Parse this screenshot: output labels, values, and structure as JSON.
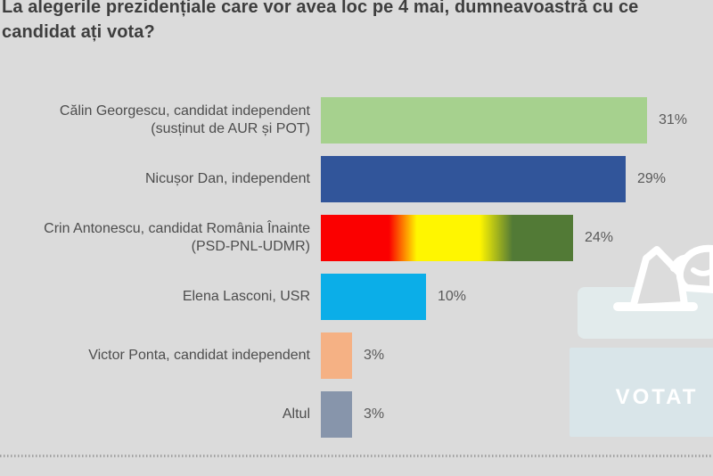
{
  "title": "La alegerile prezidențiale care vor avea loc pe 4 mai, dumneavoastră cu ce candidat ați vota?",
  "background_color": "#dbdbdb",
  "chart_data": {
    "type": "bar",
    "orientation": "horizontal",
    "value_unit": "%",
    "value_range": [
      0,
      31
    ],
    "grid": false,
    "legend": false,
    "title": "La alegerile prezidențiale care vor avea loc pe 4 mai, dumneavoastră cu ce candidat ați vota?",
    "categories": [
      "Călin Georgescu, candidat independent (susținut de AUR și POT)",
      "Nicușor Dan, independent",
      "Crin Antonescu, candidat România Înainte (PSD-PNL-UDMR)",
      "Elena Lasconi, USR",
      "Victor Ponta, candidat independent",
      "Altul"
    ],
    "values": [
      31,
      29,
      24,
      10,
      3,
      3
    ],
    "bars": [
      {
        "label_line1": "Călin Georgescu, candidat independent",
        "label_line2": "(susținut de AUR și POT)",
        "value": 31,
        "value_label": "31%",
        "color": "#a6d18e"
      },
      {
        "label_line1": "Nicușor Dan, independent",
        "label_line2": "",
        "value": 29,
        "value_label": "29%",
        "color": "#31559a"
      },
      {
        "label_line1": "Crin Antonescu, candidat România Înainte",
        "label_line2": "(PSD-PNL-UDMR)",
        "value": 24,
        "value_label": "24%",
        "gradient_stops": [
          "#fb0000 0%",
          "#fb0000 27%",
          "#fff600 38%",
          "#fff600 63%",
          "#527a36 76%",
          "#527a36 100%"
        ]
      },
      {
        "label_line1": "Elena Lasconi, USR",
        "label_line2": "",
        "value": 10,
        "value_label": "10%",
        "color": "#0baee8"
      },
      {
        "label_line1": "Victor Ponta, candidat independent",
        "label_line2": "",
        "value": 3,
        "value_label": "3%",
        "color": "#f5b184"
      },
      {
        "label_line1": "Altul",
        "label_line2": "",
        "value": 3,
        "value_label": "3%",
        "color": "#8795ab"
      }
    ]
  },
  "illustration": {
    "name": "ballot-box",
    "votat_label": "VOTAT",
    "lid_color": "#e2ebec",
    "body_color": "#d9e5e9",
    "slot_color": "#ffffff",
    "outline_color": "#ffffff",
    "paper_fill": "#dcdcdc"
  }
}
